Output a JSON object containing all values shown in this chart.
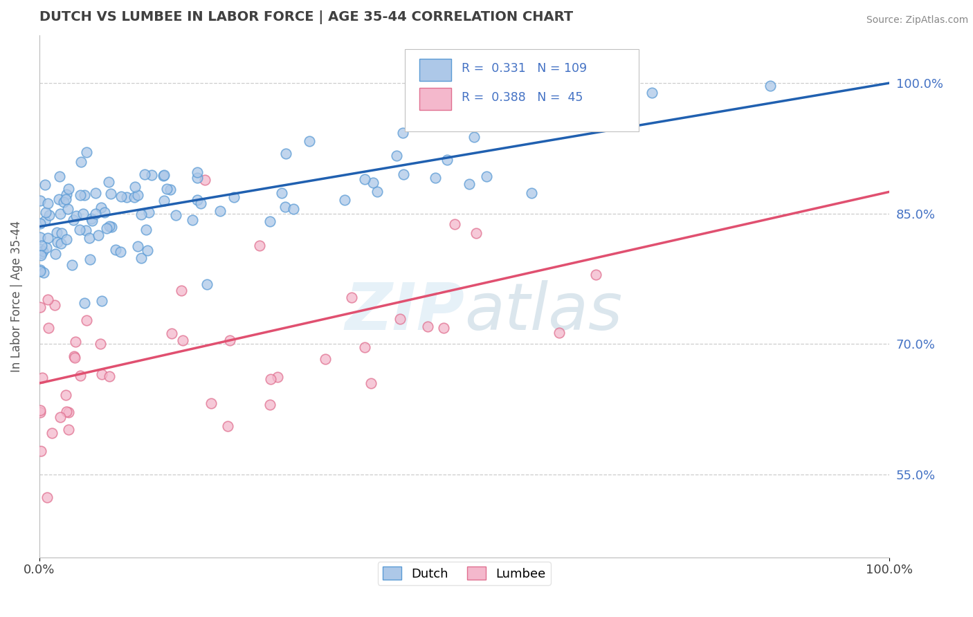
{
  "title": "DUTCH VS LUMBEE IN LABOR FORCE | AGE 35-44 CORRELATION CHART",
  "source": "Source: ZipAtlas.com",
  "ylabel": "In Labor Force | Age 35-44",
  "xlim": [
    0.0,
    1.0
  ],
  "ylim": [
    0.455,
    1.055
  ],
  "x_tick_labels": [
    "0.0%",
    "100.0%"
  ],
  "y_ticks": [
    0.55,
    0.7,
    0.85,
    1.0
  ],
  "y_tick_labels": [
    "55.0%",
    "70.0%",
    "85.0%",
    "100.0%"
  ],
  "dutch_R": 0.331,
  "dutch_N": 109,
  "lumbee_R": 0.388,
  "lumbee_N": 45,
  "dutch_color": "#adc8e8",
  "dutch_edge_color": "#5b9bd5",
  "lumbee_color": "#f4b8cc",
  "lumbee_edge_color": "#e07090",
  "trend_dutch_color": "#2060b0",
  "trend_lumbee_color": "#e05070",
  "label_color": "#4472c4",
  "title_color": "#404040",
  "grid_color": "#cccccc",
  "marker_size": 110,
  "dutch_trend_x0": 0.0,
  "dutch_trend_y0": 0.835,
  "dutch_trend_x1": 1.0,
  "dutch_trend_y1": 1.0,
  "lumbee_trend_x0": 0.0,
  "lumbee_trend_y0": 0.655,
  "lumbee_trend_x1": 1.0,
  "lumbee_trend_y1": 0.875
}
